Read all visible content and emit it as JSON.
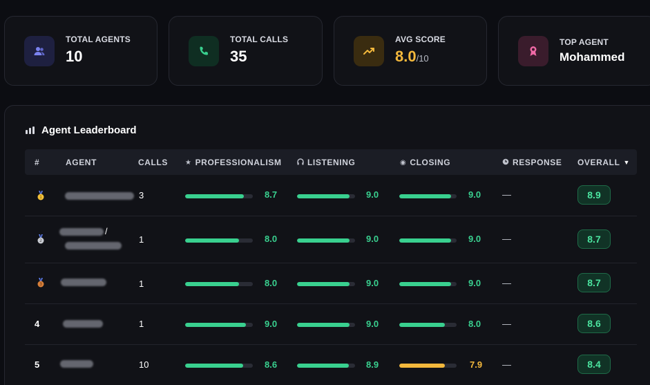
{
  "stats": [
    {
      "label": "TOTAL AGENTS",
      "value": "10",
      "icon": "users-icon",
      "color": "#7b83f0"
    },
    {
      "label": "TOTAL CALLS",
      "value": "35",
      "icon": "phone-icon",
      "color": "#39d08f"
    },
    {
      "label": "AVG SCORE",
      "value": "8.0",
      "unit": "/10",
      "icon": "trending-up-icon",
      "color": "#f3b83c"
    },
    {
      "label": "TOP AGENT",
      "value": "Mohammed",
      "icon": "award-icon",
      "color": "#f06aa6"
    }
  ],
  "leaderboard": {
    "title": "Agent Leaderboard",
    "columns": {
      "rank": "#",
      "agent": "AGENT",
      "calls": "CALLS",
      "professionalism": "PROFESSIONALISM",
      "listening": "LISTENING",
      "closing": "CLOSING",
      "response": "RESPONSE",
      "overall": "OVERALL"
    },
    "rows": [
      {
        "rank": "1",
        "medal": "gold",
        "calls": "3",
        "professionalism": "8.7",
        "listening": "9.0",
        "closing": "9.0",
        "response": "—",
        "overall": "8.9"
      },
      {
        "rank": "2",
        "medal": "silver",
        "calls": "1",
        "professionalism": "8.0",
        "listening": "9.0",
        "closing": "9.0",
        "response": "—",
        "overall": "8.7"
      },
      {
        "rank": "3",
        "medal": "bronze",
        "calls": "1",
        "professionalism": "8.0",
        "listening": "9.0",
        "closing": "9.0",
        "response": "—",
        "overall": "8.7"
      },
      {
        "rank": "4",
        "medal": "",
        "calls": "1",
        "professionalism": "9.0",
        "listening": "9.0",
        "closing": "8.0",
        "response": "—",
        "overall": "8.6"
      },
      {
        "rank": "5",
        "medal": "",
        "calls": "10",
        "professionalism": "8.6",
        "listening": "8.9",
        "closing": "7.9",
        "response": "—",
        "overall": "8.4"
      }
    ]
  },
  "colors": {
    "good": "#39d08f",
    "warn": "#f3b83c",
    "bar_track": "#2a2c35"
  }
}
